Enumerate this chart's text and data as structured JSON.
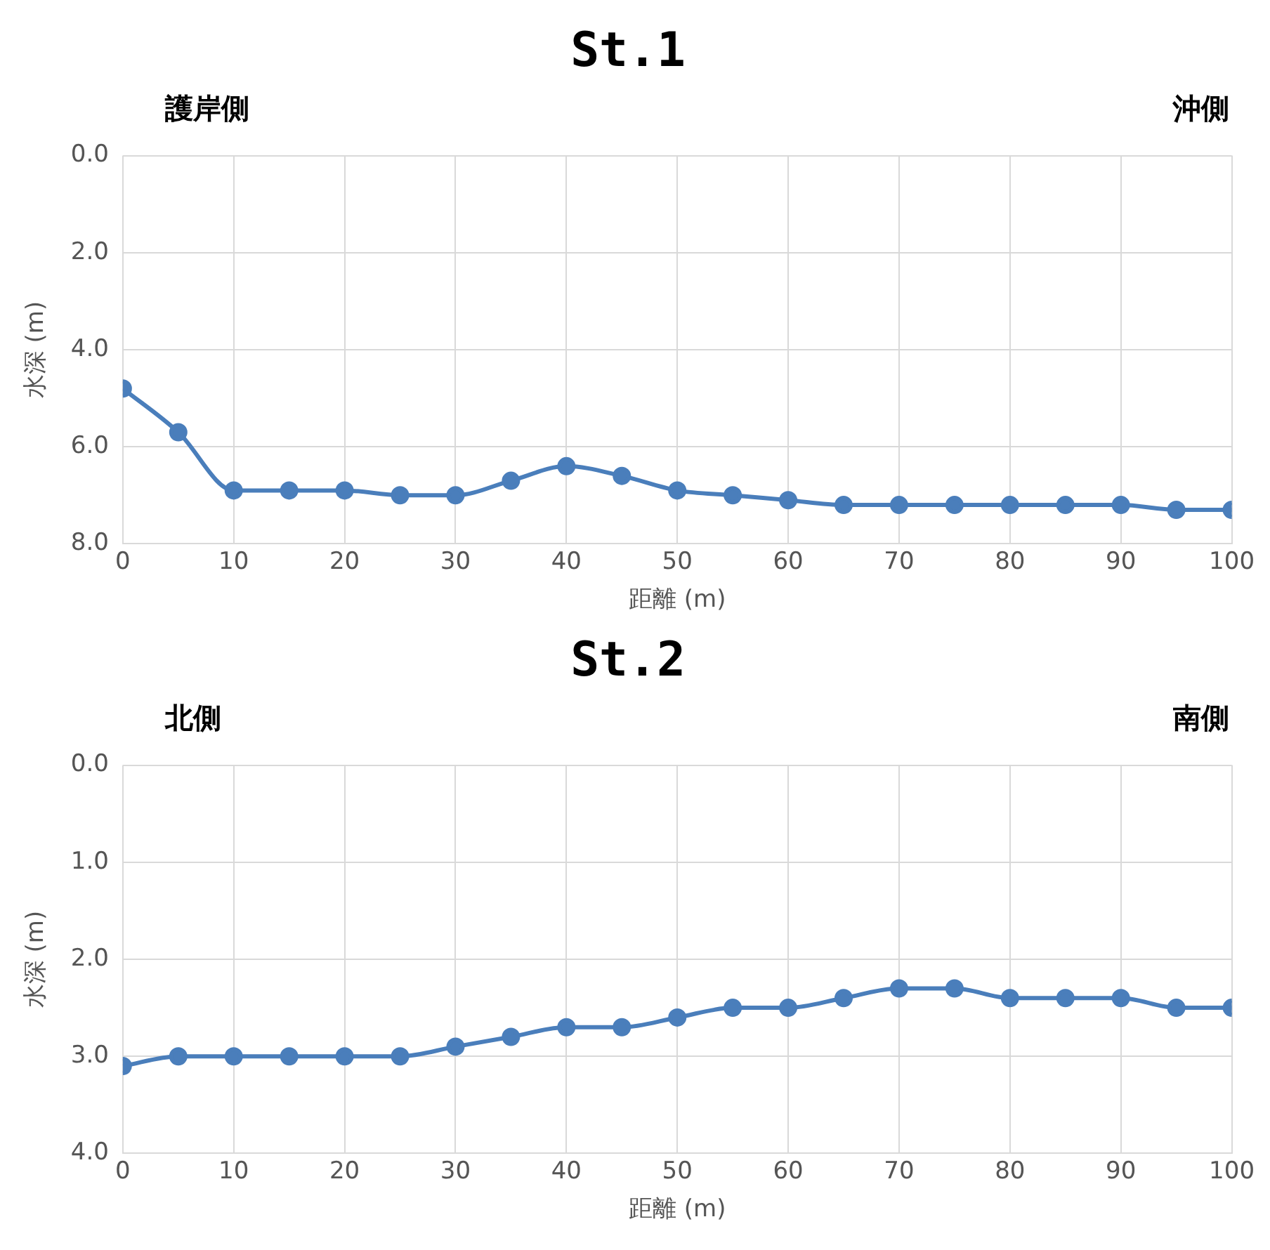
{
  "chart_data": [
    {
      "type": "line",
      "title": "St.1",
      "annotations": [
        "護岸側",
        "沖側"
      ],
      "xlabel": "距離 (m)",
      "ylabel": "水深 (m)",
      "x": [
        0,
        5,
        10,
        15,
        20,
        25,
        30,
        35,
        40,
        45,
        50,
        55,
        60,
        65,
        70,
        75,
        80,
        85,
        90,
        95,
        100
      ],
      "series": [
        {
          "color": "#4a7ebb",
          "values": [
            4.8,
            5.7,
            6.9,
            6.9,
            6.9,
            7.0,
            7.0,
            6.7,
            6.4,
            6.6,
            6.9,
            7.0,
            7.1,
            7.2,
            7.2,
            7.2,
            7.2,
            7.2,
            7.2,
            7.3,
            7.3
          ]
        }
      ],
      "xlim": [
        0,
        100
      ],
      "xticks": [
        0,
        10,
        20,
        30,
        40,
        50,
        60,
        70,
        80,
        90,
        100
      ],
      "ylim": [
        8,
        0
      ],
      "yticks": [
        {
          "value": 0,
          "label": "0.0"
        },
        {
          "value": 2,
          "label": "2.0"
        },
        {
          "value": 4,
          "label": "4.0"
        },
        {
          "value": 6,
          "label": "6.0"
        },
        {
          "value": 8,
          "label": "8.0"
        }
      ],
      "grid": true,
      "legend": false,
      "marker": "circle",
      "line_style": "solid"
    },
    {
      "type": "line",
      "title": "St.2",
      "annotations": [
        "北側",
        "南側"
      ],
      "xlabel": "距離 (m)",
      "ylabel": "水深 (m)",
      "x": [
        0,
        5,
        10,
        15,
        20,
        25,
        30,
        35,
        40,
        45,
        50,
        55,
        60,
        65,
        70,
        75,
        80,
        85,
        90,
        95,
        100
      ],
      "series": [
        {
          "color": "#4a7ebb",
          "values": [
            3.1,
            3.0,
            3.0,
            3.0,
            3.0,
            3.0,
            2.9,
            2.8,
            2.7,
            2.7,
            2.6,
            2.5,
            2.5,
            2.4,
            2.3,
            2.3,
            2.4,
            2.4,
            2.4,
            2.5,
            2.5
          ]
        }
      ],
      "xlim": [
        0,
        100
      ],
      "xticks": [
        0,
        10,
        20,
        30,
        40,
        50,
        60,
        70,
        80,
        90,
        100
      ],
      "ylim": [
        4,
        0
      ],
      "yticks": [
        {
          "value": 0,
          "label": "0.0"
        },
        {
          "value": 1,
          "label": "1.0"
        },
        {
          "value": 2,
          "label": "2.0"
        },
        {
          "value": 3,
          "label": "3.0"
        },
        {
          "value": 4,
          "label": "4.0"
        }
      ],
      "grid": true,
      "legend": false,
      "marker": "circle",
      "line_style": "solid"
    }
  ]
}
